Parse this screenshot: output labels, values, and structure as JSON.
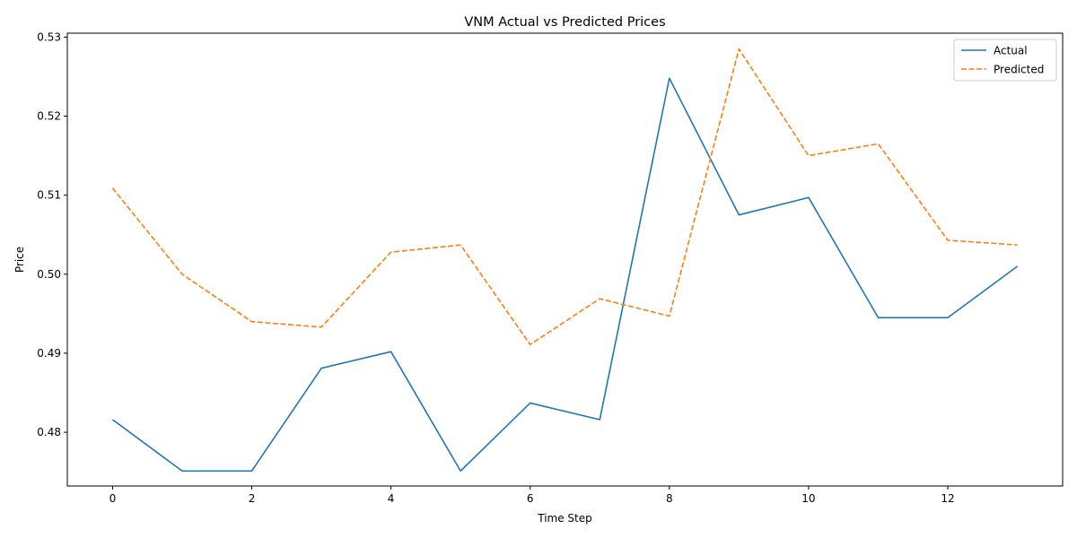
{
  "chart_data": {
    "type": "line",
    "title": "VNM Actual vs Predicted Prices",
    "xlabel": "Time Step",
    "ylabel": "Price",
    "x": [
      0,
      1,
      2,
      3,
      4,
      5,
      6,
      7,
      8,
      9,
      10,
      11,
      12,
      13
    ],
    "xlim": [
      -0.65,
      13.65
    ],
    "ylim": [
      0.4732,
      0.5305
    ],
    "x_ticks": [
      "0",
      "2",
      "4",
      "6",
      "8",
      "10",
      "12"
    ],
    "y_ticks": [
      "0.48",
      "0.49",
      "0.50",
      "0.51",
      "0.52",
      "0.53"
    ],
    "grid": false,
    "legend_position": "top-right",
    "series": [
      {
        "name": "Actual",
        "color": "#1f77b4",
        "style": "solid",
        "values": [
          0.4816,
          0.4751,
          0.4751,
          0.4881,
          0.4902,
          0.4751,
          0.4837,
          0.4816,
          0.5248,
          0.5075,
          0.5097,
          0.4945,
          0.4945,
          0.501
        ]
      },
      {
        "name": "Predicted",
        "color": "#ff7f0e",
        "style": "dashed",
        "values": [
          0.5109,
          0.5,
          0.494,
          0.4933,
          0.5028,
          0.5037,
          0.4911,
          0.4969,
          0.4947,
          0.5285,
          0.515,
          0.5165,
          0.5043,
          0.5037
        ]
      }
    ]
  }
}
